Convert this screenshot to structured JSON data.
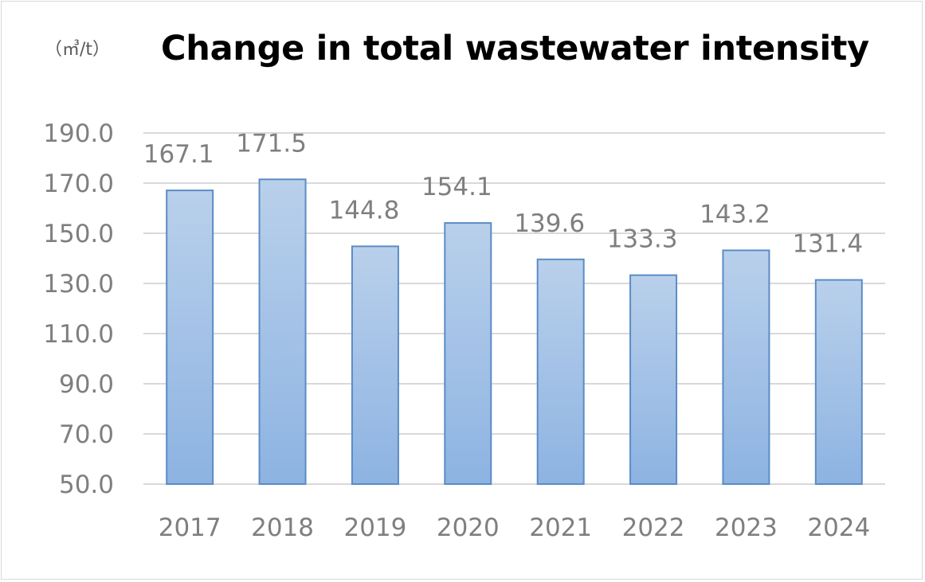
{
  "chart_data": {
    "type": "bar",
    "title": "Change in total wastewater intensity",
    "unit_label": "（㎥/t）",
    "xlabel": "",
    "ylabel": "",
    "categories": [
      "2017",
      "2018",
      "2019",
      "2020",
      "2021",
      "2022",
      "2023",
      "2024"
    ],
    "values": [
      167.1,
      171.5,
      144.8,
      154.1,
      139.6,
      133.3,
      143.2,
      131.4
    ],
    "value_labels": [
      "167.1",
      "171.5",
      "144.8",
      "154.1",
      "139.6",
      "133.3",
      "143.2",
      "131.4"
    ],
    "ylim": [
      50,
      190
    ],
    "yticks": [
      50,
      70,
      90,
      110,
      130,
      150,
      170,
      190
    ],
    "ytick_labels": [
      "50.0",
      "70.0",
      "90.0",
      "110.0",
      "130.0",
      "150.0",
      "170.0",
      "190.0"
    ],
    "grid": true,
    "legend": "none"
  },
  "colors": {
    "bar_top": "#b9d0eb",
    "bar_bottom": "#8db3e2",
    "bar_border": "#5b8cc6",
    "grid": "#d9d9d9",
    "text": "#7f7f7f"
  }
}
